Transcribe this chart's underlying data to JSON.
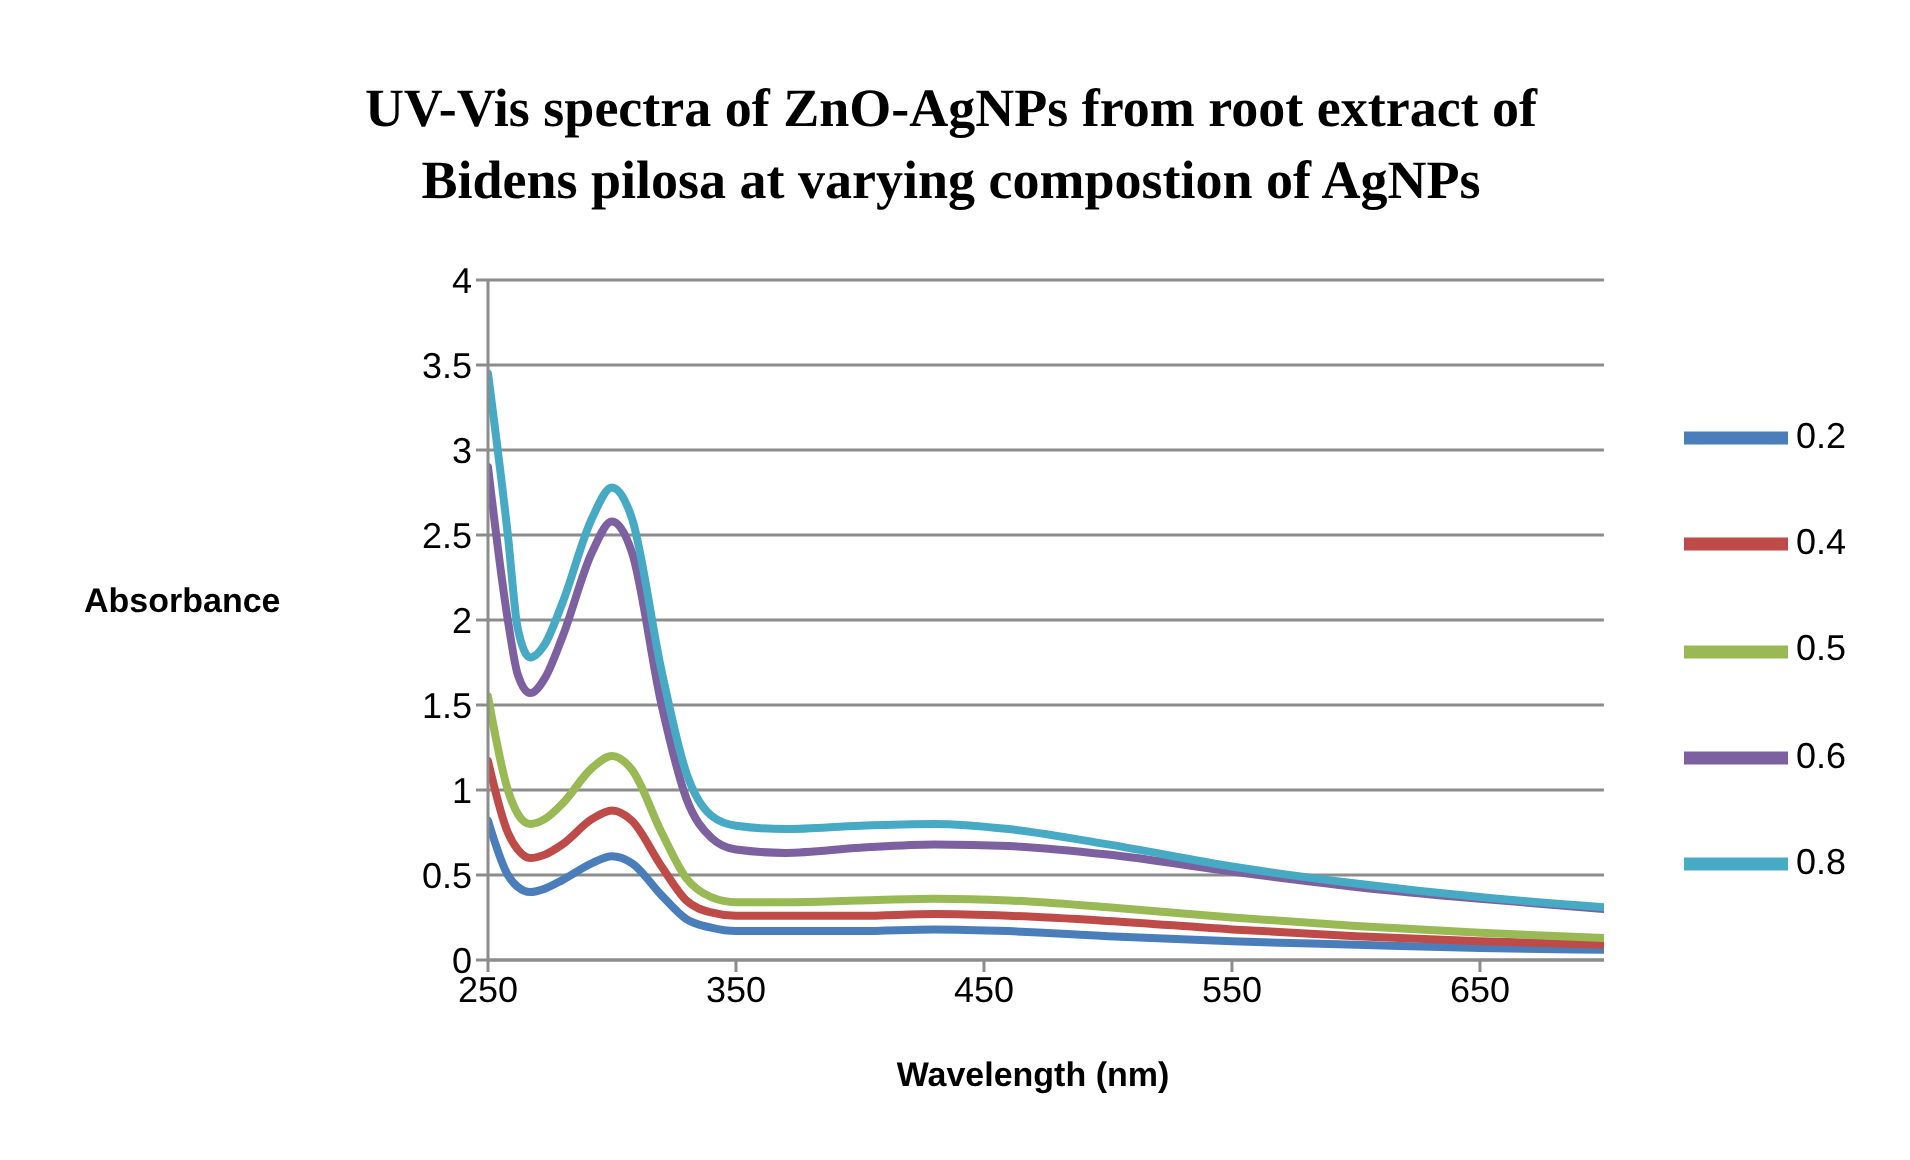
{
  "chart_data": {
    "type": "line",
    "title": "UV-Vis spectra of ZnO-AgNPs from root extract of Bidens pilosa at varying compostion of AgNPs",
    "xlabel": "Wavelength (nm)",
    "ylabel": "Absorbance",
    "x": [
      250,
      258,
      262,
      267,
      273,
      280,
      292,
      300,
      308,
      320,
      330,
      340,
      350,
      370,
      400,
      430,
      460,
      500,
      550,
      600,
      650,
      700
    ],
    "series": [
      {
        "name": "0.2",
        "color": "#4a7ebb",
        "values": [
          0.82,
          0.5,
          0.43,
          0.4,
          0.42,
          0.47,
          0.57,
          0.61,
          0.57,
          0.38,
          0.24,
          0.19,
          0.17,
          0.17,
          0.17,
          0.18,
          0.17,
          0.14,
          0.11,
          0.09,
          0.07,
          0.06
        ]
      },
      {
        "name": "0.4",
        "color": "#be4b48",
        "values": [
          1.17,
          0.75,
          0.65,
          0.6,
          0.62,
          0.68,
          0.83,
          0.88,
          0.82,
          0.55,
          0.35,
          0.28,
          0.26,
          0.26,
          0.26,
          0.27,
          0.26,
          0.23,
          0.18,
          0.14,
          0.11,
          0.09
        ]
      },
      {
        "name": "0.5",
        "color": "#98b954",
        "values": [
          1.55,
          1.0,
          0.86,
          0.8,
          0.83,
          0.92,
          1.13,
          1.2,
          1.12,
          0.75,
          0.48,
          0.37,
          0.34,
          0.34,
          0.35,
          0.36,
          0.35,
          0.31,
          0.25,
          0.2,
          0.16,
          0.13
        ]
      },
      {
        "name": "0.6",
        "color": "#7d60a0",
        "values": [
          2.9,
          2.0,
          1.68,
          1.57,
          1.66,
          1.9,
          2.4,
          2.58,
          2.4,
          1.5,
          0.95,
          0.72,
          0.65,
          0.63,
          0.66,
          0.68,
          0.67,
          0.62,
          0.52,
          0.43,
          0.36,
          0.3
        ]
      },
      {
        "name": "0.8",
        "color": "#46aac5",
        "values": [
          3.45,
          2.5,
          1.95,
          1.78,
          1.86,
          2.1,
          2.6,
          2.78,
          2.6,
          1.7,
          1.1,
          0.85,
          0.79,
          0.77,
          0.79,
          0.8,
          0.77,
          0.68,
          0.55,
          0.45,
          0.37,
          0.31
        ]
      }
    ],
    "xlim": [
      250,
      700
    ],
    "xticks": [
      250,
      350,
      450,
      550,
      650
    ],
    "ylim": [
      0,
      4
    ],
    "yticks": [
      0,
      0.5,
      1,
      1.5,
      2,
      2.5,
      3,
      3.5,
      4
    ],
    "grid": "y",
    "legend": "right",
    "marker": "none",
    "line_style": "solid"
  }
}
